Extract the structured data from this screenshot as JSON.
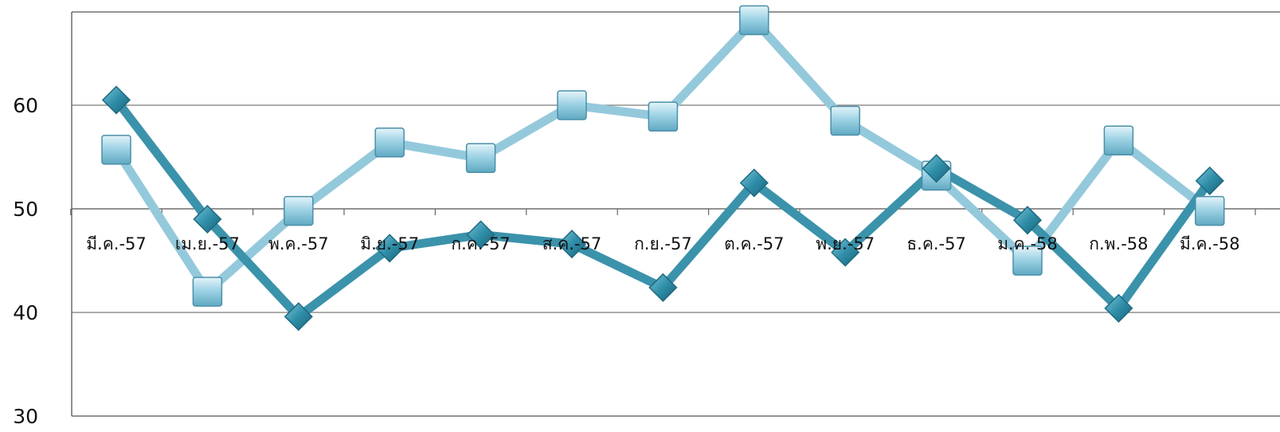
{
  "chart_data": {
    "type": "line",
    "categories": [
      "มี.ค.-57",
      "เม.ย.-57",
      "พ.ค.-57",
      "มิ.ย.-57",
      "ก.ค.-57",
      "ส.ค.-57",
      "ก.ย.-57",
      "ต.ค.-57",
      "พ.ย.-57",
      "ธ.ค.-57",
      "ม.ค.-58",
      "ก.พ.-58",
      "มี.ค.-58"
    ],
    "series": [
      {
        "marker": "diamond",
        "color": "#3b92ab",
        "values": [
          60.5,
          49.0,
          39.6,
          46.2,
          47.5,
          46.6,
          42.4,
          52.5,
          45.8,
          53.9,
          48.9,
          40.4,
          52.7
        ]
      },
      {
        "marker": "square",
        "color": "#94c9dc",
        "values": [
          55.7,
          42.0,
          49.8,
          56.4,
          54.9,
          60.0,
          58.9,
          68.2,
          58.5,
          53.2,
          45.0,
          56.6,
          49.8
        ]
      }
    ],
    "yticks": [
      30,
      40,
      50,
      60
    ],
    "ylim": [
      30,
      69
    ],
    "x_axis_crosses_at": 50,
    "grid": true,
    "legend": "none",
    "title": "",
    "xlabel": "",
    "ylabel": ""
  }
}
